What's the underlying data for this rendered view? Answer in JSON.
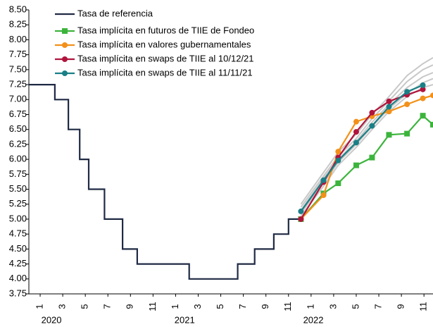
{
  "chart_data": {
    "type": "line",
    "ylim": [
      3.75,
      8.5
    ],
    "yticks": [
      3.75,
      {
        "value": 4,
        "label": "4.00"
      },
      4.25,
      {
        "value": 4.5,
        "label": "4.50"
      },
      4.75,
      {
        "value": 5,
        "label": "5.00"
      },
      5.25,
      {
        "value": 5.5,
        "label": "5.50"
      },
      5.75,
      {
        "value": 6,
        "label": "6.00"
      },
      6.25,
      {
        "value": 6.5,
        "label": "6.50"
      },
      6.75,
      {
        "value": 7,
        "label": "7.00"
      },
      7.25,
      {
        "value": 7.5,
        "label": "7.50"
      },
      7.75,
      {
        "value": 8,
        "label": "8.00"
      },
      8.25,
      {
        "value": 8.5,
        "label": "8.50"
      }
    ],
    "xlim": [
      0,
      35.8
    ],
    "xticks": [
      1,
      3,
      5,
      7,
      9,
      11,
      {
        "value": 13,
        "label": "1"
      },
      {
        "value": 15,
        "label": "3"
      },
      {
        "value": 17,
        "label": "5"
      },
      {
        "value": 19,
        "label": "7"
      },
      {
        "value": 21,
        "label": "9"
      },
      {
        "value": 23,
        "label": "11"
      },
      {
        "value": 25,
        "label": "1"
      },
      {
        "value": 27,
        "label": "3"
      },
      {
        "value": 29,
        "label": "5"
      },
      {
        "value": 31,
        "label": "7"
      },
      {
        "value": 33,
        "label": "9"
      },
      {
        "value": 35,
        "label": "11"
      }
    ],
    "x_group_labels": [
      {
        "value": 2,
        "label": "2020"
      },
      {
        "value": 13.8,
        "label": "2021"
      },
      {
        "value": 25.2,
        "label": "2022"
      }
    ],
    "series": [
      {
        "color": "#c8c8c8",
        "x": [
          24.1,
          26.1,
          27.4,
          29.0,
          30.4,
          31.9,
          33.5,
          34.9,
          35.8
        ],
        "values": [
          5.25,
          5.78,
          6.12,
          6.42,
          6.75,
          7.05,
          7.4,
          7.6,
          7.7
        ]
      },
      {
        "color": "#c8c8c8",
        "x": [
          24.1,
          26.1,
          27.4,
          29.0,
          30.4,
          31.9,
          33.5,
          34.9,
          35.8
        ],
        "values": [
          5.2,
          5.72,
          6.05,
          6.35,
          6.68,
          6.98,
          7.3,
          7.5,
          7.58
        ]
      },
      {
        "color": "#c8c8c8",
        "x": [
          24.1,
          26.1,
          27.4,
          29.0,
          30.4,
          31.9,
          33.5,
          34.9,
          35.8
        ],
        "values": [
          5.15,
          5.68,
          6.0,
          6.3,
          6.62,
          6.92,
          7.2,
          7.38,
          7.45
        ]
      },
      {
        "color": "#c8c8c8",
        "x": [
          24.1,
          26.1,
          27.4,
          29.0,
          30.4,
          31.9,
          33.5,
          34.9,
          35.8
        ],
        "values": [
          5.1,
          5.6,
          5.95,
          6.25,
          6.55,
          6.85,
          7.1,
          7.28,
          7.35
        ]
      },
      {
        "color": "#c8c8c8",
        "x": [
          24.1,
          26.1,
          27.4,
          29.0,
          30.4,
          31.9,
          33.5,
          34.9,
          35.8
        ],
        "values": [
          5.05,
          5.55,
          5.9,
          6.2,
          6.5,
          6.8,
          7.05,
          7.2,
          7.25
        ]
      },
      {
        "name": "Tasa de referencia",
        "color": "#1f2a44",
        "x": [
          0,
          2.3,
          2.3,
          3.5,
          3.5,
          4.5,
          4.5,
          5.3,
          5.3,
          6.7,
          6.7,
          8.3,
          8.3,
          9.6,
          9.6,
          14.2,
          14.2,
          18.5,
          18.5,
          20,
          20,
          21.7,
          21.7,
          23,
          23,
          24.1
        ],
        "values": [
          7.25,
          7.25,
          7.0,
          7.0,
          6.5,
          6.5,
          6.0,
          6.0,
          5.5,
          5.5,
          5.0,
          5.0,
          4.5,
          4.5,
          4.25,
          4.25,
          4.0,
          4.0,
          4.25,
          4.25,
          4.5,
          4.5,
          4.75,
          4.75,
          5.0,
          5.0
        ]
      },
      {
        "name": "Tasa implícita en futuros de TIIE de Fondeo",
        "color": "#3cb43c",
        "marker": "square",
        "x": [
          24.1,
          26.1,
          27.4,
          29.0,
          30.4,
          31.9,
          33.5,
          34.9,
          35.8
        ],
        "values": [
          5.0,
          5.43,
          5.6,
          5.9,
          6.03,
          6.41,
          6.43,
          6.73,
          6.58
        ]
      },
      {
        "name": "Tasa implícita en valores gubernamentales",
        "color": "#f39019",
        "marker": "circle",
        "x": [
          24.1,
          26.1,
          27.4,
          29.0,
          30.4,
          31.9,
          33.5,
          34.9,
          35.8
        ],
        "values": [
          5.0,
          5.4,
          6.13,
          6.63,
          6.72,
          6.8,
          6.92,
          7.02,
          7.07
        ]
      },
      {
        "name": "Tasa implícita en swaps de TIIE al 10/12/21",
        "color": "#b0143c",
        "marker": "circle",
        "x": [
          24.1,
          26.1,
          27.4,
          29.0,
          30.4,
          31.9,
          33.5,
          34.9
        ],
        "values": [
          5.0,
          5.62,
          6.03,
          6.46,
          6.78,
          6.97,
          7.08,
          7.17
        ]
      },
      {
        "name": "Tasa implícita en swaps de TIIE al 11/11/21",
        "color": "#1a7f86",
        "marker": "circle",
        "x": [
          24.1,
          26.1,
          27.4,
          29.0,
          30.4,
          31.9,
          33.5,
          34.9
        ],
        "values": [
          5.13,
          5.65,
          5.98,
          6.28,
          6.56,
          6.88,
          7.13,
          7.24
        ]
      }
    ]
  }
}
